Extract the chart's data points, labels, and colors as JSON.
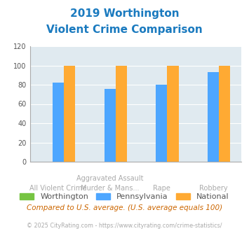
{
  "title_line1": "2019 Worthington",
  "title_line2": "Violent Crime Comparison",
  "cat_labels_top": [
    "",
    "Aggravated Assault",
    "",
    ""
  ],
  "cat_labels_bottom": [
    "All Violent Crime",
    "Murder & Mans...",
    "Rape",
    "Robbery"
  ],
  "series": {
    "Worthington": [
      0,
      0,
      0,
      0
    ],
    "Pennsylvania": [
      82,
      76,
      80,
      93
    ],
    "National": [
      100,
      100,
      100,
      100
    ]
  },
  "series_labels": [
    "Worthington",
    "Pennsylvania",
    "National"
  ],
  "colors": {
    "Worthington": "#76c442",
    "Pennsylvania": "#4da6ff",
    "National": "#ffaa33"
  },
  "ylim": [
    0,
    120
  ],
  "yticks": [
    0,
    20,
    40,
    60,
    80,
    100,
    120
  ],
  "title_color": "#1a7abf",
  "bg_color": "#e0eaf0",
  "footnote": "Compared to U.S. average. (U.S. average equals 100)",
  "copyright": "© 2025 CityRating.com - https://www.cityrating.com/crime-statistics/",
  "footnote_color": "#cc6600",
  "copyright_color": "#aaaaaa",
  "label_color": "#aaaaaa"
}
